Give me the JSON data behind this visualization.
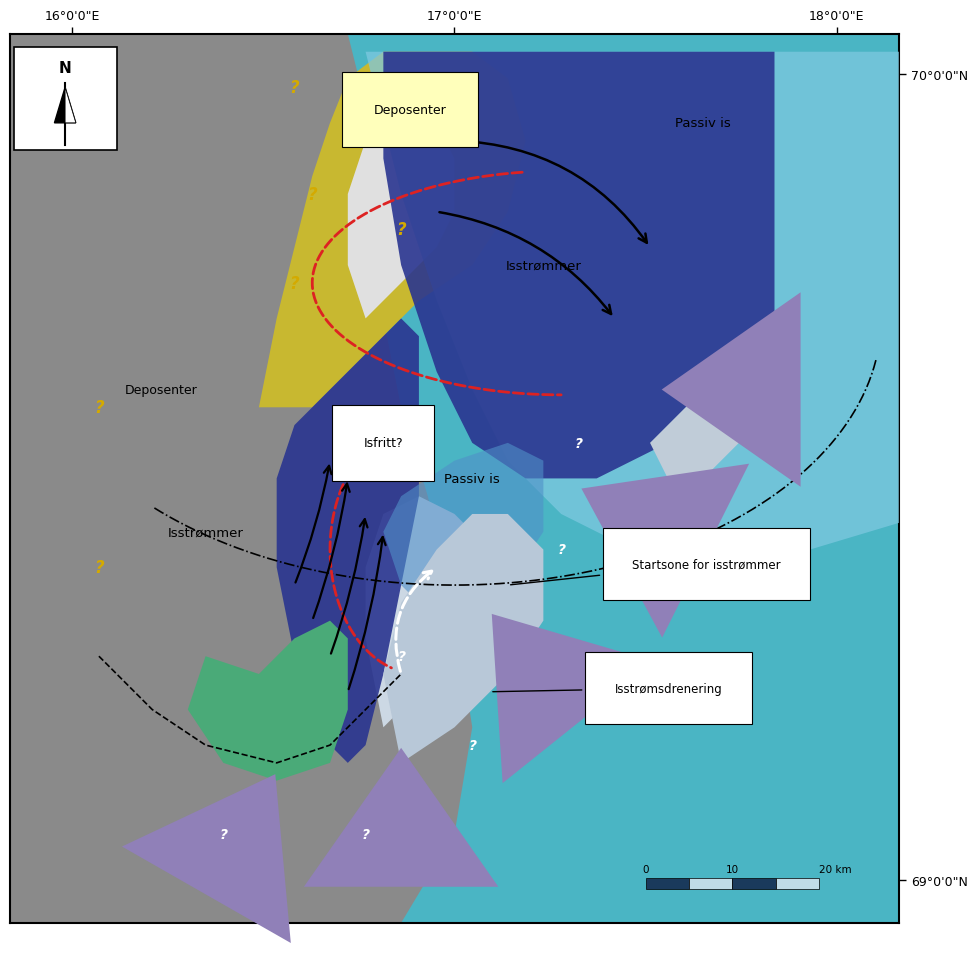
{
  "sea_color": "#4ab5c4",
  "sea_light_color": "#78c8d8",
  "passive_ice_color": "#7ec8e0",
  "ice_stream_dark": "#2a3590",
  "ice_stream_mid": "#3a4aaa",
  "deposenter_yellow": "#c8b830",
  "green_area": "#4aaa78",
  "white_ice": "#d8e8f0",
  "light_grey_ice": "#c0c8d0",
  "red_line": "#dd2222",
  "arrow_purple": "#9080b8",
  "yellow_qmark": "#d4aa00",
  "lon_ticks": [
    "16°0'0\"E",
    "17°0'0\"E",
    "18°0'0\"E"
  ],
  "lat_ticks": [
    "70°0'0\"N",
    "69°0'0\"N"
  ]
}
